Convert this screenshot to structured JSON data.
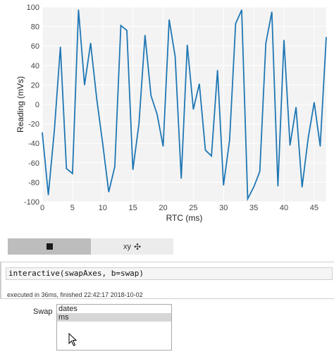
{
  "chart_data": {
    "type": "line",
    "xlabel": "RTC (ms)",
    "ylabel": "Reading (mVs)",
    "xlim": [
      0,
      47
    ],
    "ylim": [
      -100,
      100
    ],
    "x_ticks": [
      0,
      5,
      10,
      15,
      20,
      25,
      30,
      35,
      40,
      45
    ],
    "y_ticks": [
      -100,
      -80,
      -60,
      -40,
      -20,
      0,
      20,
      40,
      60,
      80,
      100
    ],
    "grid": true,
    "line_color": "#1f77b4",
    "x": [
      0,
      1,
      2,
      3,
      4,
      5,
      6,
      7,
      8,
      9,
      10,
      11,
      12,
      13,
      14,
      15,
      16,
      17,
      18,
      19,
      20,
      21,
      22,
      23,
      24,
      25,
      26,
      27,
      28,
      29,
      30,
      31,
      32,
      33,
      34,
      35,
      36,
      37,
      38,
      39,
      40,
      41,
      42,
      43,
      44,
      45,
      46,
      47
    ],
    "y": [
      -29,
      -93,
      -27,
      59,
      -66,
      -71,
      97,
      20,
      63,
      6,
      -40,
      -90,
      -64,
      81,
      76,
      -67,
      -20,
      71,
      9,
      -10,
      -43,
      87,
      49,
      -76,
      61,
      -5,
      21,
      -47,
      -53,
      35,
      -83,
      -37,
      83,
      97,
      -97,
      -85,
      -69,
      63,
      95,
      -84,
      66,
      -42,
      -3,
      -85,
      -35,
      2,
      -43,
      69
    ]
  },
  "toolbar": {
    "stop_icon": "stop-square-icon",
    "xy_label": "xy",
    "move_icon": "✣"
  },
  "code_cell": {
    "source": "interactive(swapAxes, b=swap)"
  },
  "execution": {
    "status": "executed in 36ms, finished 22:42:17 2018-10-02"
  },
  "swap_widget": {
    "label": "Swap",
    "options": [
      "dates",
      "ms"
    ],
    "selected": "ms"
  }
}
